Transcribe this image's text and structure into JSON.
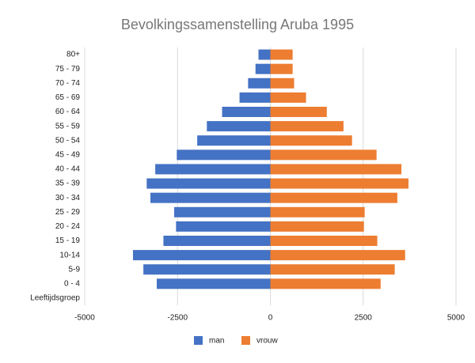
{
  "chart_data": {
    "type": "bar",
    "title": "Bevolkingssamenstelling Aruba 1995",
    "categories": [
      "80+",
      "75 - 79",
      "70 - 74",
      "65 - 69",
      "60 - 64",
      "55 - 59",
      "50 - 54",
      "45 - 49",
      "40 - 44",
      "35 - 39",
      "30 - 34",
      "25 - 29",
      "20 - 24",
      "15 - 19",
      "10-14",
      "5-9",
      "0 - 4",
      "Leeftijdsgroep"
    ],
    "series": [
      {
        "name": "man",
        "color": "#4472c4",
        "values": [
          -320,
          -400,
          -600,
          -830,
          -1300,
          -1710,
          -1970,
          -2520,
          -3100,
          -3330,
          -3230,
          -2590,
          -2540,
          -2880,
          -3700,
          -3420,
          -3060,
          null
        ]
      },
      {
        "name": "vrouw",
        "color": "#ed7d31",
        "values": [
          600,
          600,
          640,
          960,
          1520,
          1970,
          2200,
          2860,
          3530,
          3720,
          3420,
          2540,
          2520,
          2880,
          3630,
          3350,
          2970,
          null
        ]
      }
    ],
    "xlim": [
      -5000,
      5000
    ],
    "xticks": [
      -5000,
      -2500,
      0,
      2500,
      5000
    ],
    "grid": true,
    "legend": "bottom"
  }
}
